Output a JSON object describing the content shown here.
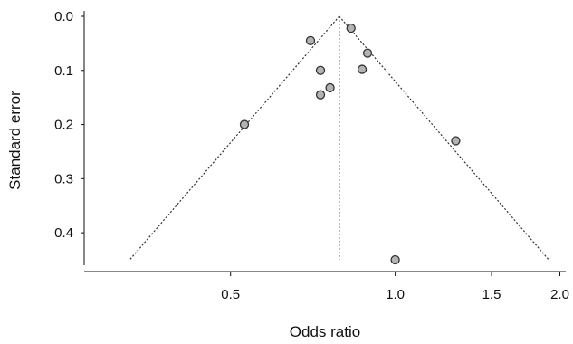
{
  "chart_data": {
    "type": "scatter",
    "title": "",
    "xlabel": "Odds ratio",
    "ylabel": "Standard error",
    "x_scale": "log",
    "y_inverted": true,
    "xlim": [
      0.27,
      2.05
    ],
    "ylim": [
      0.0,
      0.46
    ],
    "x_ticks": [
      0.5,
      1.0,
      1.5,
      2.0
    ],
    "x_tick_labels": [
      "0.5",
      "1.0",
      "1.5",
      "2.0"
    ],
    "y_ticks": [
      0.0,
      0.1,
      0.2,
      0.3,
      0.4
    ],
    "y_tick_labels": [
      "0.0",
      "0.1",
      "0.2",
      "0.3",
      "0.4"
    ],
    "grid": false,
    "pooled_odds_ratio": 0.79,
    "funnel_se_max": 0.45,
    "funnel_z": 1.96,
    "points": [
      {
        "x": 0.7,
        "y": 0.045
      },
      {
        "x": 0.83,
        "y": 0.022
      },
      {
        "x": 0.89,
        "y": 0.068
      },
      {
        "x": 0.73,
        "y": 0.1
      },
      {
        "x": 0.87,
        "y": 0.098
      },
      {
        "x": 0.76,
        "y": 0.132
      },
      {
        "x": 0.73,
        "y": 0.145
      },
      {
        "x": 0.53,
        "y": 0.2
      },
      {
        "x": 1.29,
        "y": 0.23
      },
      {
        "x": 1.0,
        "y": 0.45
      }
    ],
    "colors": {
      "point_fill": "#b3b3b3",
      "point_stroke": "#333333",
      "axis": "#111111",
      "funnel_line": "#333333"
    }
  }
}
